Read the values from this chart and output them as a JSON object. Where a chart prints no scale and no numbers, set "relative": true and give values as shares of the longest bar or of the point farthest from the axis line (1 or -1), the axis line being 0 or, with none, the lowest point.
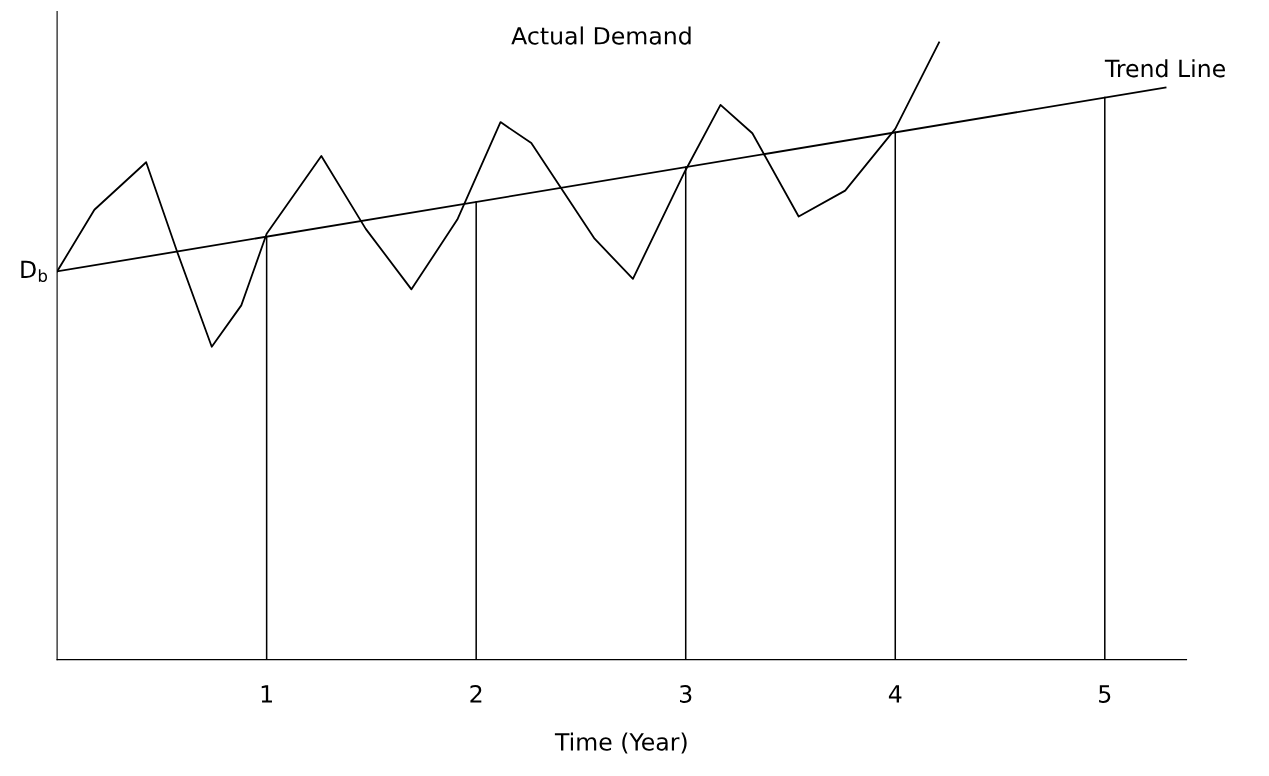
{
  "chart_data": {
    "type": "line",
    "relative": true,
    "xlabel": "Time (Year)",
    "xlim": [
      0,
      5.39
    ],
    "xticks": [
      1,
      2,
      3,
      4,
      5
    ],
    "series": [
      {
        "name": "Actual Demand",
        "color": "#000000",
        "x": [
          0,
          0.178,
          0.425,
          0.575,
          0.738,
          0.879,
          1,
          1.261,
          1.473,
          1.691,
          1.91,
          2.116,
          2.263,
          2.565,
          2.748,
          2.996,
          3.166,
          3.318,
          3.539,
          3.761,
          4,
          4.209
        ],
        "values": [
          0.629,
          0.729,
          0.806,
          0.659,
          0.507,
          0.574,
          0.69,
          0.816,
          0.698,
          0.6,
          0.713,
          0.871,
          0.837,
          0.682,
          0.617,
          0.791,
          0.899,
          0.853,
          0.718,
          0.76,
          0.86,
          1.0
        ]
      },
      {
        "name": "Trend Line",
        "color": "#000000",
        "x": [
          0,
          5.29
        ],
        "values": [
          0.629,
          0.927
        ]
      }
    ],
    "ref_lines": [
      {
        "axis": "x",
        "value": 1
      },
      {
        "axis": "x",
        "value": 2
      },
      {
        "axis": "x",
        "value": 3
      },
      {
        "axis": "x",
        "value": 4
      },
      {
        "axis": "x",
        "value": 5
      }
    ],
    "annotations": [
      {
        "text": "D$_{b}$",
        "x": 0,
        "y": 0.629
      }
    ],
    "grid": false,
    "legend": false,
    "marker": "none",
    "line_style": "solid"
  }
}
